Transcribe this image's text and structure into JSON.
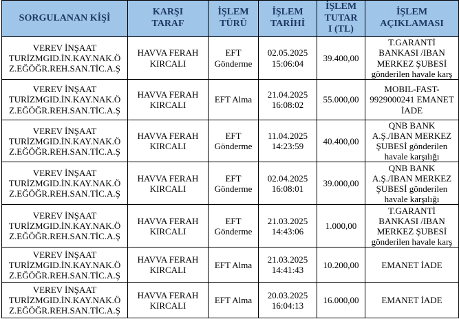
{
  "colors": {
    "header_bg": "#9fc5e8",
    "header_text": "#1f3864",
    "border": "#000000",
    "body_text": "#000000",
    "page_bg": "#ffffff"
  },
  "table": {
    "columns": [
      {
        "key": "sorgulanan_kisi",
        "label": "SORGULANAN KİŞİ"
      },
      {
        "key": "karsi_taraf",
        "label": "KARŞI\nTARAF"
      },
      {
        "key": "islem_turu",
        "label": "İŞLEM\nTÜRÜ"
      },
      {
        "key": "islem_tarihi",
        "label": "İŞLEM\nTARİHİ"
      },
      {
        "key": "islem_tutari",
        "label": "İŞLEM\nTUTAR\nI (TL)"
      },
      {
        "key": "islem_aciklamasi",
        "label": "İŞLEM\nAÇIKLAMASI"
      }
    ],
    "rows": [
      {
        "sorgulanan_kisi": "VEREV İNŞAAT\nTURİZMGID.İN.KAY.NAK.Ö\nZ.EĞÖĞR.REH.SAN.TİC.A.Ş",
        "karsi_taraf": "HAVVA FERAH\nKIRCALI",
        "islem_turu": "EFT\nGönderme",
        "islem_tarihi": "02.05.2025\n15:06:04",
        "islem_tutari": "39.400,00",
        "islem_aciklamasi": "T.GARANTİ\nBANKASI /IBAN\nMERKEZ ŞUBESİ\ngönderilen havale karş"
      },
      {
        "sorgulanan_kisi": "VEREV İNŞAAT\nTURİZMGID.İN.KAY.NAK.Ö\nZ.EĞÖĞR.REH.SAN.TİC.A.Ş",
        "karsi_taraf": "HAVVA FERAH\nKIRCALI",
        "islem_turu": "EFT Alma",
        "islem_tarihi": "21.04.2025\n16:08:02",
        "islem_tutari": "55.000,00",
        "islem_aciklamasi": "MOBIL-FAST-\n9929000241 EMANET\nİADE"
      },
      {
        "sorgulanan_kisi": "VEREV İNŞAAT\nTURİZMGID.İN.KAY.NAK.Ö\nZ.EĞÖĞR.REH.SAN.TİC.A.Ş",
        "karsi_taraf": "HAVVA FERAH\nKIRCALI",
        "islem_turu": "EFT\nGönderme",
        "islem_tarihi": "11.04.2025\n14:23:59",
        "islem_tutari": "40.400,00",
        "islem_aciklamasi": "QNB BANK\nA.Ş./IBAN MERKEZ\nŞUBESİ gönderilen\nhavale karşılığı"
      },
      {
        "sorgulanan_kisi": "VEREV İNŞAAT\nTURİZMGID.İN.KAY.NAK.Ö\nZ.EĞÖĞR.REH.SAN.TİC.A.Ş",
        "karsi_taraf": "HAVVA FERAH\nKIRCALI",
        "islem_turu": "EFT\nGönderme",
        "islem_tarihi": "02.04.2025\n16:08:01",
        "islem_tutari": "39.000,00",
        "islem_aciklamasi": "QNB BANK\nA.Ş./IBAN MERKEZ\nŞUBESİ gönderilen\nhavale karşılığı"
      },
      {
        "sorgulanan_kisi": "VEREV İNŞAAT\nTURİZMGID.İN.KAY.NAK.Ö\nZ.EĞÖĞR.REH.SAN.TİC.A.Ş",
        "karsi_taraf": "HAVVA FERAH\nKIRCALI",
        "islem_turu": "EFT\nGönderme",
        "islem_tarihi": "21.03.2025\n14:43:06",
        "islem_tutari": "1.000,00",
        "islem_aciklamasi": "T.GARANTİ\nBANKASI /IBAN\nMERKEZ ŞUBESİ\ngönderilen havale karş"
      },
      {
        "sorgulanan_kisi": "VEREV İNŞAAT\nTURİZMGID.İN.KAY.NAK.Ö\nZ.EĞÖĞR.REH.SAN.TİC.A.Ş",
        "karsi_taraf": "HAVVA FERAH\nKIRCALI",
        "islem_turu": "EFT Alma",
        "islem_tarihi": "21.03.2025\n14:41:43",
        "islem_tutari": "10.200,00",
        "islem_aciklamasi": "EMANET İADE"
      },
      {
        "sorgulanan_kisi": "VEREV İNŞAAT\nTURİZMGID.İN.KAY.NAK.Ö\nZ.EĞÖĞR.REH.SAN.TİC.A.Ş",
        "karsi_taraf": "HAVVA FERAH\nKIRCALI",
        "islem_turu": "EFT Alma",
        "islem_tarihi": "20.03.2025\n16:04:13",
        "islem_tutari": "16.000,00",
        "islem_aciklamasi": "EMANET İADE"
      }
    ]
  }
}
